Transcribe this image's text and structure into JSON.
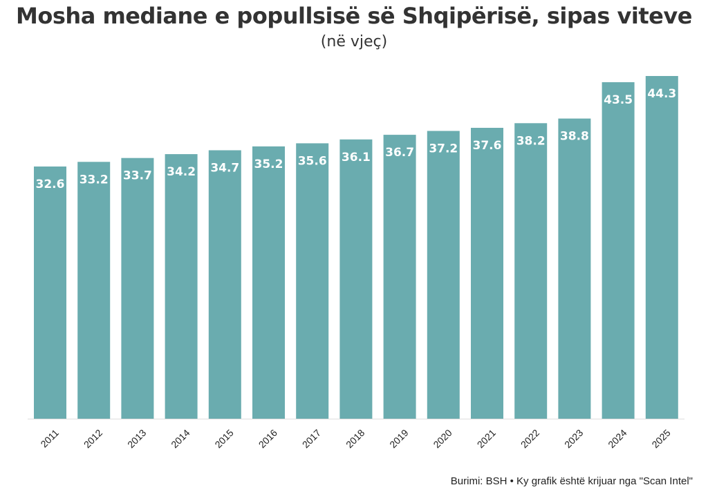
{
  "title": "Mosha mediane e popullsisë së Shqipërisë, sipas viteve",
  "subtitle": "(në vjeç)",
  "footer": "Burimi: BSH • Ky grafik është krijuar nga \"Scan Intel\"",
  "colors": {
    "bar": "#6aacaf",
    "label": "#ffffff",
    "axis": "#dddddd",
    "tick": "#222222"
  },
  "chart_data": {
    "type": "bar",
    "categories": [
      "2011",
      "2012",
      "2013",
      "2014",
      "2015",
      "2016",
      "2017",
      "2018",
      "2019",
      "2020",
      "2021",
      "2022",
      "2023",
      "2024",
      "2025"
    ],
    "values": [
      32.6,
      33.2,
      33.7,
      34.2,
      34.7,
      35.2,
      35.6,
      36.1,
      36.7,
      37.2,
      37.6,
      38.2,
      38.8,
      43.5,
      44.3
    ],
    "title": "Mosha mediane e popullsisë së Shqipërisë, sipas viteve",
    "subtitle": "(në vjeç)",
    "xlabel": "",
    "ylabel": "",
    "ylim": [
      0,
      44.3
    ],
    "grid": false,
    "legend": "none",
    "data_labels": [
      "32.6",
      "33.2",
      "33.7",
      "34.2",
      "34.7",
      "35.2",
      "35.6",
      "36.1",
      "36.7",
      "37.2",
      "37.6",
      "38.2",
      "38.8",
      "43.5",
      "44.3"
    ]
  }
}
